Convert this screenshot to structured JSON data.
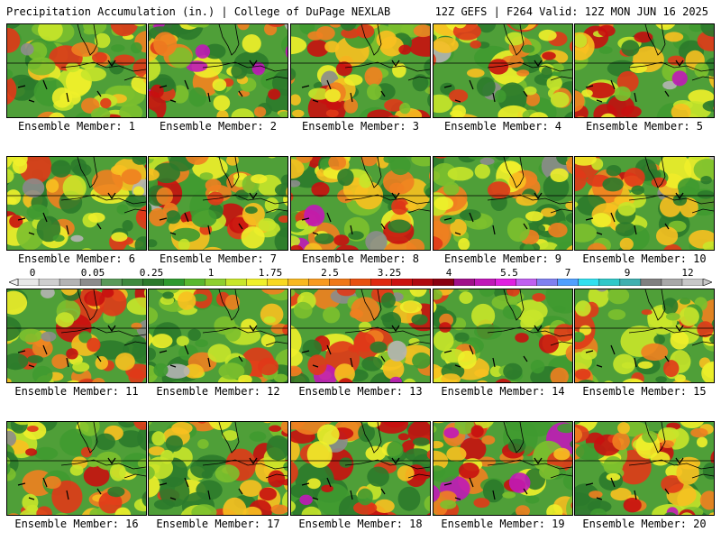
{
  "header": {
    "left_title": "Precipitation Accumulation (in.) | College of DuPage NEXLAB",
    "right_title": "12Z GEFS | F264 Valid: 12Z MON JUN 16 2025"
  },
  "colors": {
    "background": "#ffffff",
    "scale": [
      "#e8e8e8",
      "#cfcfcf",
      "#b4b4b4",
      "#8c8c8c",
      "#5a9a5a",
      "#3f8a3f",
      "#2c7a2c",
      "#2f9a2f",
      "#5ab82f",
      "#8ecf2f",
      "#c8e62a",
      "#f0f02a",
      "#f8d820",
      "#f8b820",
      "#f89a20",
      "#f07818",
      "#e85010",
      "#e02810",
      "#cc1010",
      "#b00810",
      "#8a0010",
      "#a0108a",
      "#c018b8",
      "#e020e0",
      "#c060f0",
      "#8080f0",
      "#50a0ff",
      "#30e0f0",
      "#30c8c8",
      "#40b0b0",
      "#808080",
      "#a8a8a8",
      "#c8c8c8"
    ]
  },
  "colorbar": {
    "tick_labels": [
      "0",
      "0.05",
      "0.25",
      "1",
      "1.75",
      "2.5",
      "3.25",
      "4",
      "5.5",
      "7",
      "9",
      "12"
    ]
  },
  "panels": [
    {
      "label": "Ensemble Member: 1",
      "intensity": 0.35,
      "seed": 11
    },
    {
      "label": "Ensemble Member: 2",
      "intensity": 0.55,
      "seed": 23
    },
    {
      "label": "Ensemble Member: 3",
      "intensity": 0.45,
      "seed": 37
    },
    {
      "label": "Ensemble Member: 4",
      "intensity": 0.4,
      "seed": 41
    },
    {
      "label": "Ensemble Member: 5",
      "intensity": 0.55,
      "seed": 53
    },
    {
      "label": "Ensemble Member: 6",
      "intensity": 0.35,
      "seed": 67
    },
    {
      "label": "Ensemble Member: 7",
      "intensity": 0.4,
      "seed": 71
    },
    {
      "label": "Ensemble Member: 8",
      "intensity": 0.5,
      "seed": 83
    },
    {
      "label": "Ensemble Member: 9",
      "intensity": 0.2,
      "seed": 97
    },
    {
      "label": "Ensemble Member: 10",
      "intensity": 0.35,
      "seed": 101
    },
    {
      "label": "Ensemble Member: 11",
      "intensity": 0.45,
      "seed": 113
    },
    {
      "label": "Ensemble Member: 12",
      "intensity": 0.3,
      "seed": 127
    },
    {
      "label": "Ensemble Member: 13",
      "intensity": 0.55,
      "seed": 131
    },
    {
      "label": "Ensemble Member: 14",
      "intensity": 0.4,
      "seed": 149
    },
    {
      "label": "Ensemble Member: 15",
      "intensity": 0.25,
      "seed": 151
    },
    {
      "label": "Ensemble Member: 16",
      "intensity": 0.35,
      "seed": 163
    },
    {
      "label": "Ensemble Member: 17",
      "intensity": 0.45,
      "seed": 173
    },
    {
      "label": "Ensemble Member: 18",
      "intensity": 0.45,
      "seed": 181
    },
    {
      "label": "Ensemble Member: 19",
      "intensity": 0.55,
      "seed": 191
    },
    {
      "label": "Ensemble Member: 20",
      "intensity": 0.45,
      "seed": 199
    }
  ]
}
